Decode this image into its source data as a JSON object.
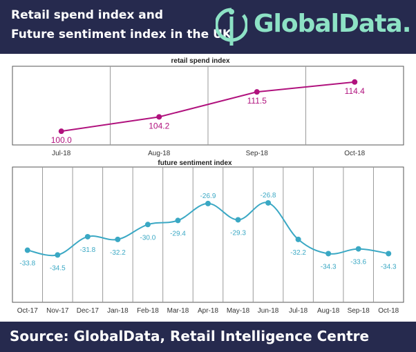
{
  "header": {
    "title_line1": "Retail spend index and",
    "title_line2": "Future sentiment index in the UK",
    "logo_text": "GlobalData."
  },
  "footer": {
    "source": "Source: GlobalData, Retail Intelligence Centre"
  },
  "colors": {
    "header_bg": "#262a4e",
    "logo_accent": "#8de2c5",
    "retail_line": "#b0117d",
    "sentiment_line": "#3aa8c4"
  },
  "chart_data": [
    {
      "type": "line",
      "title": "retail spend index",
      "categories": [
        "Jul-18",
        "Aug-18",
        "Sep-18",
        "Oct-18"
      ],
      "values": [
        100.0,
        104.2,
        111.5,
        114.4
      ],
      "labels": [
        "100.0",
        "104.2",
        "111.5",
        "114.4"
      ],
      "ylim": [
        96,
        119
      ],
      "color": "#b0117d"
    },
    {
      "type": "line",
      "title": "future sentiment index",
      "categories": [
        "Oct-17",
        "Nov-17",
        "Dec-17",
        "Jan-18",
        "Feb-18",
        "Mar-18",
        "Apr-18",
        "May-18",
        "Jun-18",
        "Jul-18",
        "Aug-18",
        "Sep-18",
        "Oct-18"
      ],
      "values": [
        -33.8,
        -34.5,
        -31.8,
        -32.2,
        -30.0,
        -29.4,
        -26.9,
        -29.3,
        -26.8,
        -32.2,
        -34.3,
        -33.6,
        -34.3
      ],
      "labels": [
        "-33.8",
        "-34.5",
        "-31.8",
        "-32.2",
        "-30.0",
        "-29.4",
        "-26.9",
        "-29.3",
        "-26.8",
        "-32.2",
        "-34.3",
        "-33.6",
        "-34.3"
      ],
      "ylim": [
        -41.5,
        -21.5
      ],
      "color": "#3aa8c4"
    }
  ]
}
